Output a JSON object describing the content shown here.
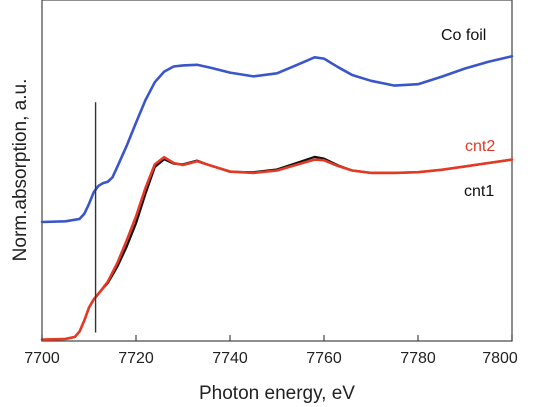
{
  "chart_data": {
    "type": "line",
    "xlabel": "Photon energy, eV",
    "ylabel": "Norm.absorption, a.u.",
    "xlim": [
      7700,
      7800
    ],
    "ylim": [
      0,
      1
    ],
    "x_ticks": [
      7700,
      7720,
      7740,
      7760,
      7780,
      7800
    ],
    "y_ticks_shown": false,
    "grid": false,
    "legend": "inline labels",
    "reference_line_x": 7711.4,
    "series": [
      {
        "name": "Co foil",
        "color": "#3b56c8",
        "x": [
          7700,
          7705,
          7708,
          7709,
          7710,
          7711,
          7712,
          7713,
          7714,
          7715,
          7716,
          7718,
          7720,
          7722,
          7724,
          7726,
          7728,
          7730,
          7733,
          7736,
          7740,
          7745,
          7750,
          7755,
          7758,
          7760,
          7763,
          7766,
          7770,
          7775,
          7780,
          7785,
          7790,
          7795,
          7800
        ],
        "y": [
          0.349,
          0.351,
          0.358,
          0.373,
          0.402,
          0.436,
          0.455,
          0.463,
          0.467,
          0.48,
          0.51,
          0.572,
          0.64,
          0.706,
          0.759,
          0.79,
          0.805,
          0.808,
          0.81,
          0.801,
          0.787,
          0.776,
          0.785,
          0.814,
          0.832,
          0.828,
          0.803,
          0.78,
          0.763,
          0.749,
          0.753,
          0.775,
          0.799,
          0.819,
          0.835
        ]
      },
      {
        "name": "cnt2",
        "color": "#e33a26",
        "x": [
          7700,
          7705,
          7707,
          7708,
          7709,
          7710,
          7711,
          7712,
          7714,
          7716,
          7718,
          7720,
          7722,
          7724,
          7726,
          7728,
          7730,
          7733,
          7736,
          7740,
          7745,
          7750,
          7755,
          7758,
          7760,
          7763,
          7766,
          7770,
          7775,
          7780,
          7785,
          7790,
          7795,
          7800
        ],
        "y": [
          0.004,
          0.006,
          0.012,
          0.028,
          0.06,
          0.098,
          0.122,
          0.138,
          0.174,
          0.228,
          0.294,
          0.365,
          0.448,
          0.518,
          0.539,
          0.522,
          0.516,
          0.527,
          0.514,
          0.497,
          0.493,
          0.5,
          0.52,
          0.532,
          0.53,
          0.513,
          0.5,
          0.493,
          0.493,
          0.495,
          0.502,
          0.512,
          0.522,
          0.532
        ]
      },
      {
        "name": "cnt1",
        "color": "#111111",
        "x": [
          7700,
          7705,
          7707,
          7708,
          7709,
          7710,
          7711,
          7712,
          7714,
          7716,
          7718,
          7720,
          7722,
          7724,
          7726,
          7728,
          7730,
          7733,
          7736,
          7740,
          7745,
          7750,
          7755,
          7758,
          7760,
          7763,
          7766,
          7770,
          7775,
          7780,
          7785,
          7790,
          7795,
          7800
        ],
        "y": [
          0.004,
          0.006,
          0.012,
          0.028,
          0.06,
          0.098,
          0.122,
          0.139,
          0.17,
          0.217,
          0.276,
          0.345,
          0.431,
          0.51,
          0.533,
          0.52,
          0.518,
          0.529,
          0.514,
          0.496,
          0.495,
          0.503,
          0.526,
          0.54,
          0.535,
          0.515,
          0.5,
          0.493,
          0.493,
          0.495,
          0.502,
          0.512,
          0.522,
          0.532
        ]
      }
    ]
  }
}
